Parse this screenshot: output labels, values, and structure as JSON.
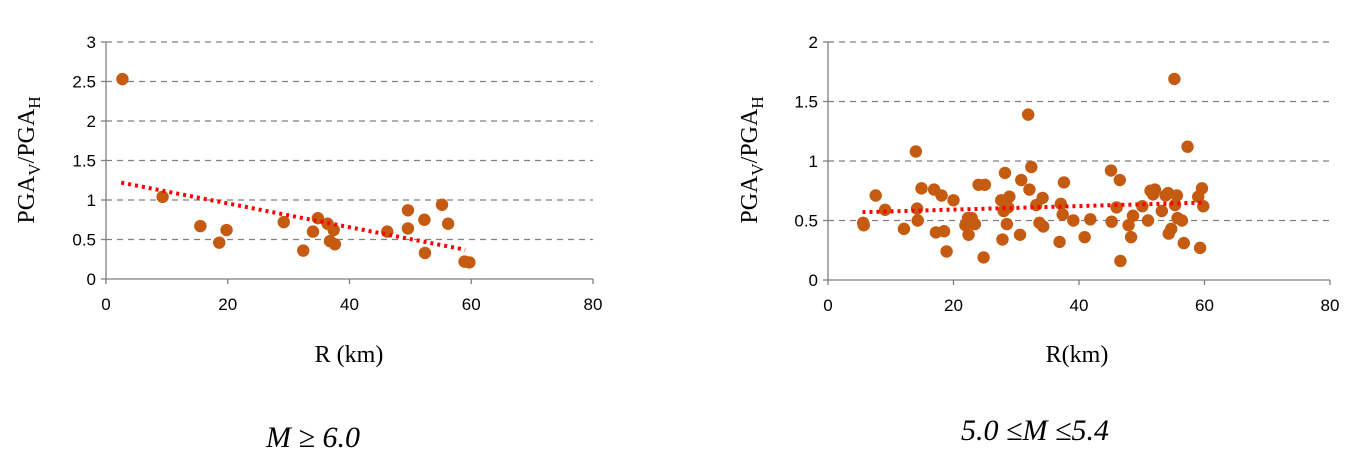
{
  "chart_data": [
    {
      "type": "scatter",
      "ylabel_main": "PGA",
      "ylabel_sub_v": "V",
      "ylabel_slash": "/PGA",
      "ylabel_sub_h": "H",
      "xlabel": "R (km)",
      "caption": "M ≥ 6.0",
      "xlim": [
        0,
        80
      ],
      "ylim": [
        0,
        3
      ],
      "xticks": [
        0,
        20,
        40,
        60,
        80
      ],
      "yticks": [
        0,
        0.5,
        1,
        1.5,
        2,
        2.5,
        3
      ],
      "xtick_labels": [
        "0",
        "20",
        "40",
        "60",
        "80"
      ],
      "ytick_labels": [
        "0",
        "0.5",
        "1",
        "1.5",
        "2",
        "2.5",
        "3"
      ],
      "grid": "horizontal-dashed",
      "point_color": "#c55a11",
      "trend_color": "#ff0000",
      "trendline": {
        "x": [
          2.5,
          59
        ],
        "y": [
          1.22,
          0.37
        ]
      },
      "points": [
        [
          2.7,
          2.53
        ],
        [
          9.3,
          1.04
        ],
        [
          15.5,
          0.67
        ],
        [
          18.6,
          0.46
        ],
        [
          19.8,
          0.62
        ],
        [
          29.2,
          0.72
        ],
        [
          32.4,
          0.36
        ],
        [
          34.0,
          0.6
        ],
        [
          34.8,
          0.77
        ],
        [
          36.4,
          0.7
        ],
        [
          36.8,
          0.48
        ],
        [
          37.4,
          0.62
        ],
        [
          37.6,
          0.44
        ],
        [
          46.2,
          0.6
        ],
        [
          49.6,
          0.87
        ],
        [
          49.6,
          0.64
        ],
        [
          52.3,
          0.75
        ],
        [
          52.4,
          0.33
        ],
        [
          55.2,
          0.94
        ],
        [
          56.2,
          0.7
        ],
        [
          58.9,
          0.22
        ],
        [
          59.7,
          0.21
        ]
      ]
    },
    {
      "type": "scatter",
      "ylabel_main": "PGA",
      "ylabel_sub_v": "V",
      "ylabel_slash": "/PGA",
      "ylabel_sub_h": "H",
      "xlabel": "R(km)",
      "caption": "5.0 ≤M ≤5.4",
      "xlim": [
        0,
        80
      ],
      "ylim": [
        0,
        2
      ],
      "xticks": [
        0,
        20,
        40,
        60,
        80
      ],
      "yticks": [
        0,
        0.5,
        1,
        1.5,
        2
      ],
      "xtick_labels": [
        "0",
        "20",
        "40",
        "60",
        "80"
      ],
      "ytick_labels": [
        "0",
        "0.5",
        "1",
        "1.5",
        "2"
      ],
      "grid": "horizontal-dashed",
      "point_color": "#c55a11",
      "trend_color": "#ff0000",
      "trendline": {
        "x": [
          5.5,
          59.5
        ],
        "y": [
          0.57,
          0.65
        ]
      },
      "points": [
        [
          5.6,
          0.48
        ],
        [
          5.7,
          0.46
        ],
        [
          7.6,
          0.71
        ],
        [
          9.1,
          0.59
        ],
        [
          12.1,
          0.43
        ],
        [
          14.0,
          1.08
        ],
        [
          14.2,
          0.6
        ],
        [
          14.3,
          0.5
        ],
        [
          14.9,
          0.77
        ],
        [
          16.9,
          0.76
        ],
        [
          17.2,
          0.4
        ],
        [
          18.1,
          0.71
        ],
        [
          18.5,
          0.41
        ],
        [
          18.9,
          0.24
        ],
        [
          20.0,
          0.67
        ],
        [
          21.9,
          0.46
        ],
        [
          22.3,
          0.52
        ],
        [
          22.4,
          0.38
        ],
        [
          22.9,
          0.52
        ],
        [
          23.4,
          0.47
        ],
        [
          24.0,
          0.8
        ],
        [
          24.8,
          0.19
        ],
        [
          25.0,
          0.8
        ],
        [
          27.6,
          0.67
        ],
        [
          27.8,
          0.34
        ],
        [
          28.0,
          0.58
        ],
        [
          28.2,
          0.9
        ],
        [
          28.5,
          0.47
        ],
        [
          28.7,
          0.61
        ],
        [
          28.9,
          0.7
        ],
        [
          30.6,
          0.38
        ],
        [
          30.8,
          0.84
        ],
        [
          31.9,
          1.39
        ],
        [
          32.1,
          0.76
        ],
        [
          32.4,
          0.95
        ],
        [
          33.2,
          0.63
        ],
        [
          33.7,
          0.48
        ],
        [
          34.2,
          0.69
        ],
        [
          34.3,
          0.45
        ],
        [
          36.9,
          0.32
        ],
        [
          37.1,
          0.64
        ],
        [
          37.4,
          0.55
        ],
        [
          37.6,
          0.82
        ],
        [
          39.1,
          0.5
        ],
        [
          40.9,
          0.36
        ],
        [
          41.8,
          0.51
        ],
        [
          45.1,
          0.92
        ],
        [
          45.2,
          0.49
        ],
        [
          46.0,
          0.61
        ],
        [
          46.5,
          0.84
        ],
        [
          46.6,
          0.16
        ],
        [
          47.9,
          0.46
        ],
        [
          48.3,
          0.36
        ],
        [
          48.6,
          0.54
        ],
        [
          50.1,
          0.62
        ],
        [
          51.0,
          0.5
        ],
        [
          51.4,
          0.75
        ],
        [
          51.8,
          0.72
        ],
        [
          52.1,
          0.76
        ],
        [
          53.2,
          0.58
        ],
        [
          53.8,
          0.71
        ],
        [
          54.2,
          0.73
        ],
        [
          54.3,
          0.39
        ],
        [
          54.7,
          0.43
        ],
        [
          55.2,
          1.69
        ],
        [
          55.3,
          0.63
        ],
        [
          55.6,
          0.71
        ],
        [
          55.7,
          0.52
        ],
        [
          56.4,
          0.5
        ],
        [
          56.7,
          0.31
        ],
        [
          57.3,
          1.12
        ],
        [
          59.0,
          0.7
        ],
        [
          59.3,
          0.27
        ],
        [
          59.6,
          0.77
        ],
        [
          59.8,
          0.62
        ]
      ]
    }
  ]
}
